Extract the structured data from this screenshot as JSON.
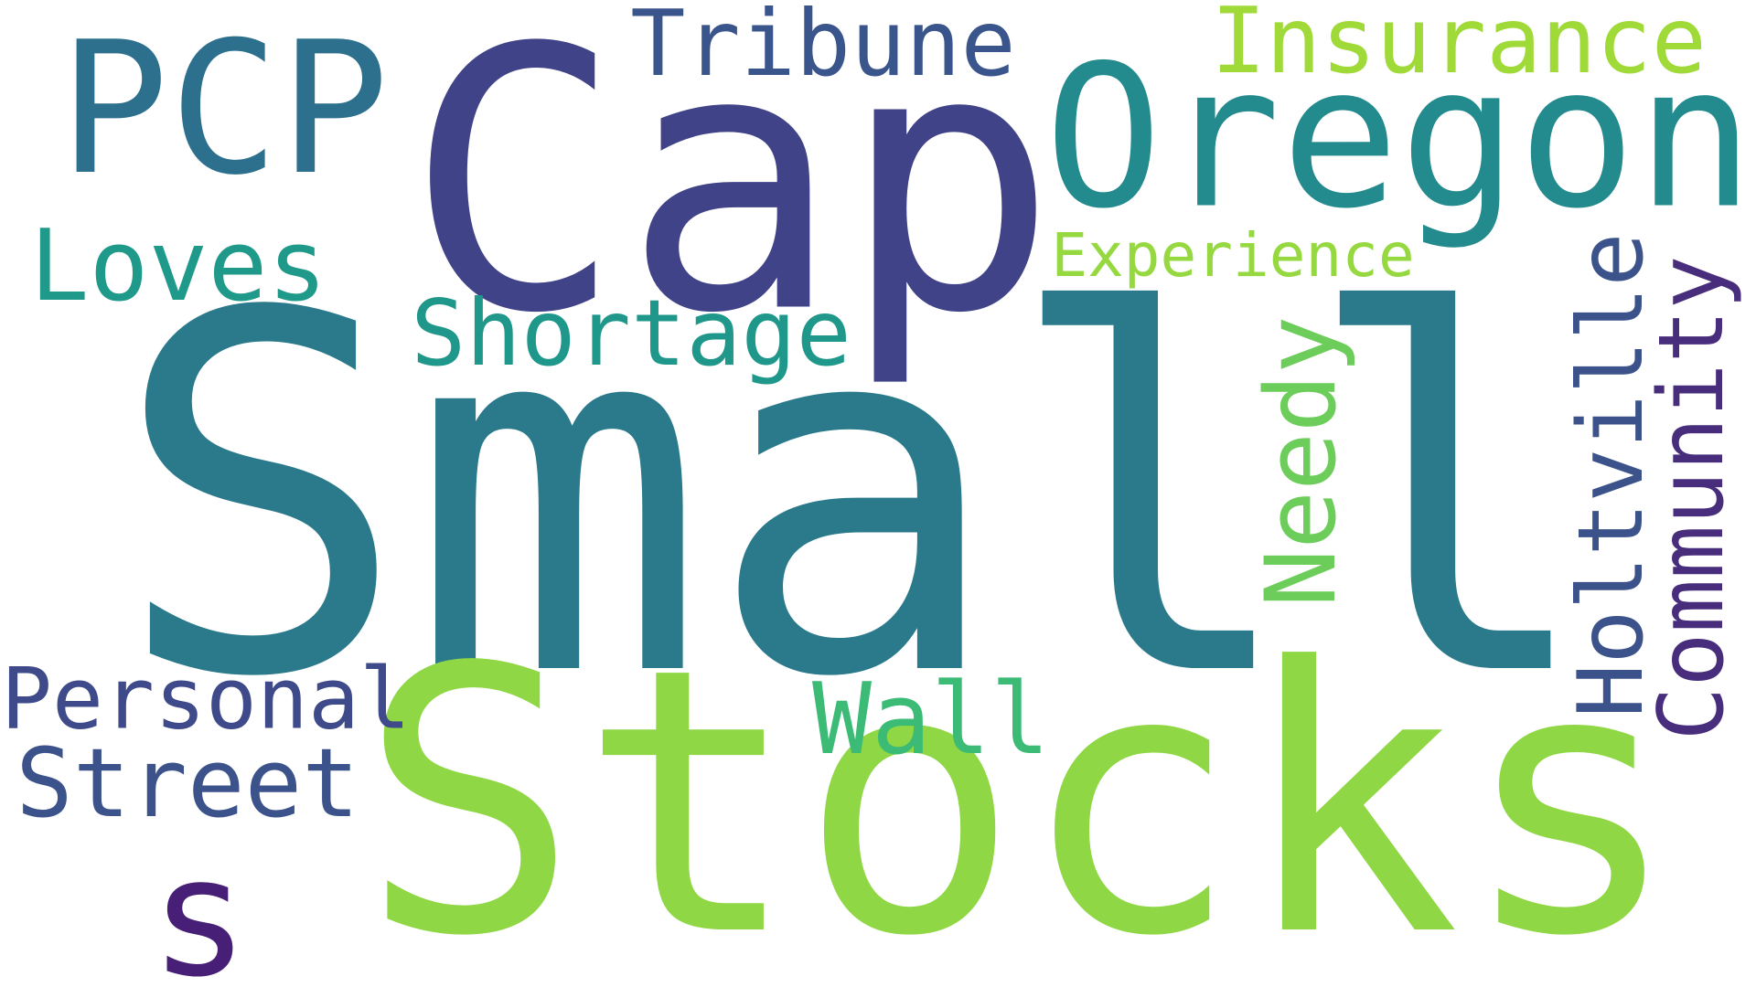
{
  "word_cloud": {
    "background": "#ffffff",
    "words": {
      "small": {
        "text": "Small",
        "color": "#2a7a8c"
      },
      "stocks": {
        "text": "Stocks",
        "color": "#8fd744"
      },
      "cap": {
        "text": "Cap",
        "color": "#404387"
      },
      "oregon": {
        "text": "Oregon",
        "color": "#238a8d"
      },
      "pcp": {
        "text": "PCP",
        "color": "#2d708e"
      },
      "tribune": {
        "text": "Tribune",
        "color": "#3a548c"
      },
      "insurance": {
        "text": "Insurance",
        "color": "#a0da39"
      },
      "loves": {
        "text": "Loves",
        "color": "#1f9a8a"
      },
      "shortage": {
        "text": "Shortage",
        "color": "#1f988b"
      },
      "experience": {
        "text": "Experience",
        "color": "#95d840"
      },
      "personal": {
        "text": "Personal",
        "color": "#3e4a89"
      },
      "street": {
        "text": "Street",
        "color": "#3b528b"
      },
      "wall": {
        "text": "Wall",
        "color": "#3bbb75"
      },
      "s": {
        "text": "s",
        "color": "#471f76"
      },
      "needy": {
        "text": "Needy",
        "color": "#6ccd5a"
      },
      "holtville": {
        "text": "Holtville",
        "color": "#3b528b"
      },
      "community": {
        "text": "Community",
        "color": "#472d7b"
      }
    }
  }
}
